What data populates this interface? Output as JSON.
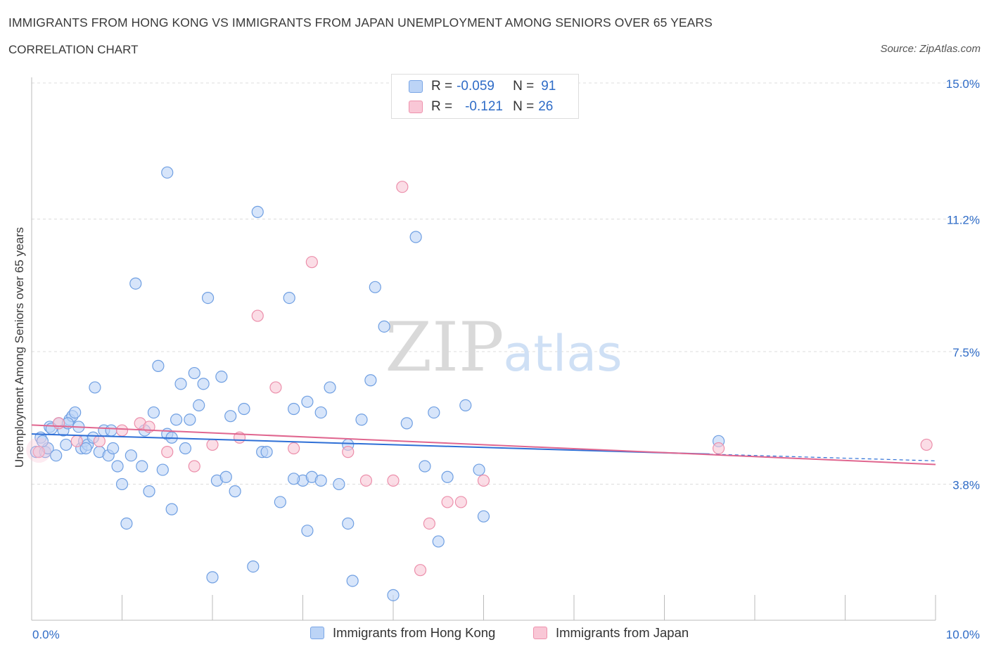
{
  "header": {
    "title": "IMMIGRANTS FROM HONG KONG VS IMMIGRANTS FROM JAPAN UNEMPLOYMENT AMONG SENIORS OVER 65 YEARS",
    "subtitle": "CORRELATION CHART",
    "source": "Source: ZipAtlas.com"
  },
  "watermark": {
    "zip": "ZIP",
    "atlas": "atlas"
  },
  "legend": {
    "rows": [
      {
        "r_label": "R =",
        "r_value": "-0.059",
        "n_label": "N =",
        "n_value": "91"
      },
      {
        "r_label": "R =",
        "r_value": "-0.121",
        "n_label": "N =",
        "n_value": "26"
      }
    ]
  },
  "colors": {
    "blue_fill": "#bcd4f6",
    "blue_stroke": "#6f9fe2",
    "blue_line": "#2e6fd6",
    "pink_fill": "#f9c7d6",
    "pink_stroke": "#ec8fab",
    "pink_line": "#e0668f",
    "axis_text": "#2f6cc7",
    "grid": "#dcdcdc"
  },
  "chart_data": {
    "type": "scatter",
    "title": "IMMIGRANTS FROM HONG KONG VS IMMIGRANTS FROM JAPAN UNEMPLOYMENT AMONG SENIORS OVER 65 YEARS",
    "xlabel": "",
    "ylabel": "Unemployment Among Seniors over 65 years",
    "xlim": [
      0,
      10
    ],
    "ylim": [
      0,
      15
    ],
    "x_tick_labels": [
      "0.0%",
      "10.0%"
    ],
    "y_ticks": [
      3.8,
      7.5,
      11.2,
      15.0
    ],
    "y_tick_labels": [
      "3.8%",
      "7.5%",
      "11.2%",
      "15.0%"
    ],
    "series": [
      {
        "name": "Immigrants from Hong Kong",
        "r": -0.059,
        "n": 91,
        "trend": {
          "x0": 0.0,
          "y0": 5.2,
          "x1": 10.0,
          "y1": 4.45
        },
        "points": [
          [
            0.05,
            4.7
          ],
          [
            0.1,
            5.1
          ],
          [
            0.15,
            4.7
          ],
          [
            0.18,
            4.8
          ],
          [
            0.2,
            5.4
          ],
          [
            0.27,
            4.6
          ],
          [
            0.3,
            5.5
          ],
          [
            0.35,
            5.3
          ],
          [
            0.38,
            4.9
          ],
          [
            0.42,
            5.6
          ],
          [
            0.45,
            5.7
          ],
          [
            0.48,
            5.8
          ],
          [
            0.52,
            5.4
          ],
          [
            0.55,
            4.8
          ],
          [
            0.58,
            5.0
          ],
          [
            0.62,
            4.9
          ],
          [
            0.68,
            5.1
          ],
          [
            0.7,
            6.5
          ],
          [
            0.75,
            4.7
          ],
          [
            0.8,
            5.3
          ],
          [
            0.85,
            4.6
          ],
          [
            0.88,
            5.3
          ],
          [
            0.9,
            4.8
          ],
          [
            0.95,
            4.3
          ],
          [
            1.0,
            3.8
          ],
          [
            1.05,
            2.7
          ],
          [
            1.1,
            4.6
          ],
          [
            1.15,
            9.4
          ],
          [
            1.22,
            4.3
          ],
          [
            1.25,
            5.3
          ],
          [
            1.3,
            3.6
          ],
          [
            1.35,
            5.8
          ],
          [
            1.4,
            7.1
          ],
          [
            1.45,
            4.2
          ],
          [
            1.5,
            5.2
          ],
          [
            1.55,
            3.1
          ],
          [
            1.6,
            5.6
          ],
          [
            1.65,
            6.6
          ],
          [
            1.7,
            4.8
          ],
          [
            1.75,
            5.6
          ],
          [
            1.8,
            6.9
          ],
          [
            1.85,
            6.0
          ],
          [
            1.9,
            6.6
          ],
          [
            1.95,
            9.0
          ],
          [
            2.0,
            1.2
          ],
          [
            2.05,
            3.9
          ],
          [
            2.1,
            6.8
          ],
          [
            2.15,
            4.0
          ],
          [
            2.2,
            5.7
          ],
          [
            2.25,
            3.6
          ],
          [
            2.35,
            5.9
          ],
          [
            2.45,
            1.5
          ],
          [
            2.55,
            4.7
          ],
          [
            2.6,
            4.7
          ],
          [
            2.75,
            3.3
          ],
          [
            2.85,
            9.0
          ],
          [
            2.9,
            5.9
          ],
          [
            3.0,
            3.9
          ],
          [
            3.05,
            6.1
          ],
          [
            3.1,
            4.0
          ],
          [
            3.2,
            3.9
          ],
          [
            3.3,
            6.5
          ],
          [
            3.4,
            3.8
          ],
          [
            3.5,
            4.9
          ],
          [
            3.55,
            1.1
          ],
          [
            3.65,
            5.6
          ],
          [
            3.75,
            6.7
          ],
          [
            3.8,
            9.3
          ],
          [
            3.9,
            8.2
          ],
          [
            4.0,
            0.7
          ],
          [
            4.15,
            5.5
          ],
          [
            4.25,
            10.7
          ],
          [
            4.35,
            4.3
          ],
          [
            4.45,
            5.8
          ],
          [
            4.5,
            2.2
          ],
          [
            4.6,
            4.0
          ],
          [
            4.8,
            6.0
          ],
          [
            4.95,
            4.2
          ],
          [
            5.0,
            2.9
          ],
          [
            7.6,
            5.0
          ],
          [
            1.5,
            12.5
          ],
          [
            2.5,
            11.4
          ],
          [
            0.6,
            4.8
          ],
          [
            0.4,
            5.5
          ],
          [
            2.9,
            3.95
          ],
          [
            3.05,
            2.5
          ],
          [
            3.5,
            2.7
          ],
          [
            1.55,
            5.1
          ],
          [
            3.2,
            5.8
          ],
          [
            0.12,
            5.0
          ],
          [
            0.22,
            5.35
          ]
        ]
      },
      {
        "name": "Immigrants from Japan",
        "r": -0.121,
        "n": 26,
        "trend": {
          "x0": 0.0,
          "y0": 5.45,
          "x1": 10.0,
          "y1": 4.35
        },
        "points": [
          [
            0.08,
            4.7
          ],
          [
            0.3,
            5.5
          ],
          [
            0.5,
            5.0
          ],
          [
            0.75,
            5.0
          ],
          [
            1.0,
            5.3
          ],
          [
            1.2,
            5.5
          ],
          [
            1.3,
            5.4
          ],
          [
            1.5,
            4.7
          ],
          [
            1.8,
            4.3
          ],
          [
            2.0,
            4.9
          ],
          [
            2.3,
            5.1
          ],
          [
            2.5,
            8.5
          ],
          [
            2.7,
            6.5
          ],
          [
            2.9,
            4.8
          ],
          [
            3.1,
            10.0
          ],
          [
            3.5,
            4.7
          ],
          [
            3.7,
            3.9
          ],
          [
            4.0,
            3.9
          ],
          [
            4.1,
            12.1
          ],
          [
            4.3,
            1.4
          ],
          [
            4.4,
            2.7
          ],
          [
            4.6,
            3.3
          ],
          [
            4.75,
            3.3
          ],
          [
            5.0,
            3.9
          ],
          [
            7.6,
            4.8
          ],
          [
            9.9,
            4.9
          ]
        ]
      }
    ]
  },
  "bottom_legend": {
    "items": [
      {
        "label": "Immigrants from Hong Kong"
      },
      {
        "label": "Immigrants from Japan"
      }
    ]
  }
}
